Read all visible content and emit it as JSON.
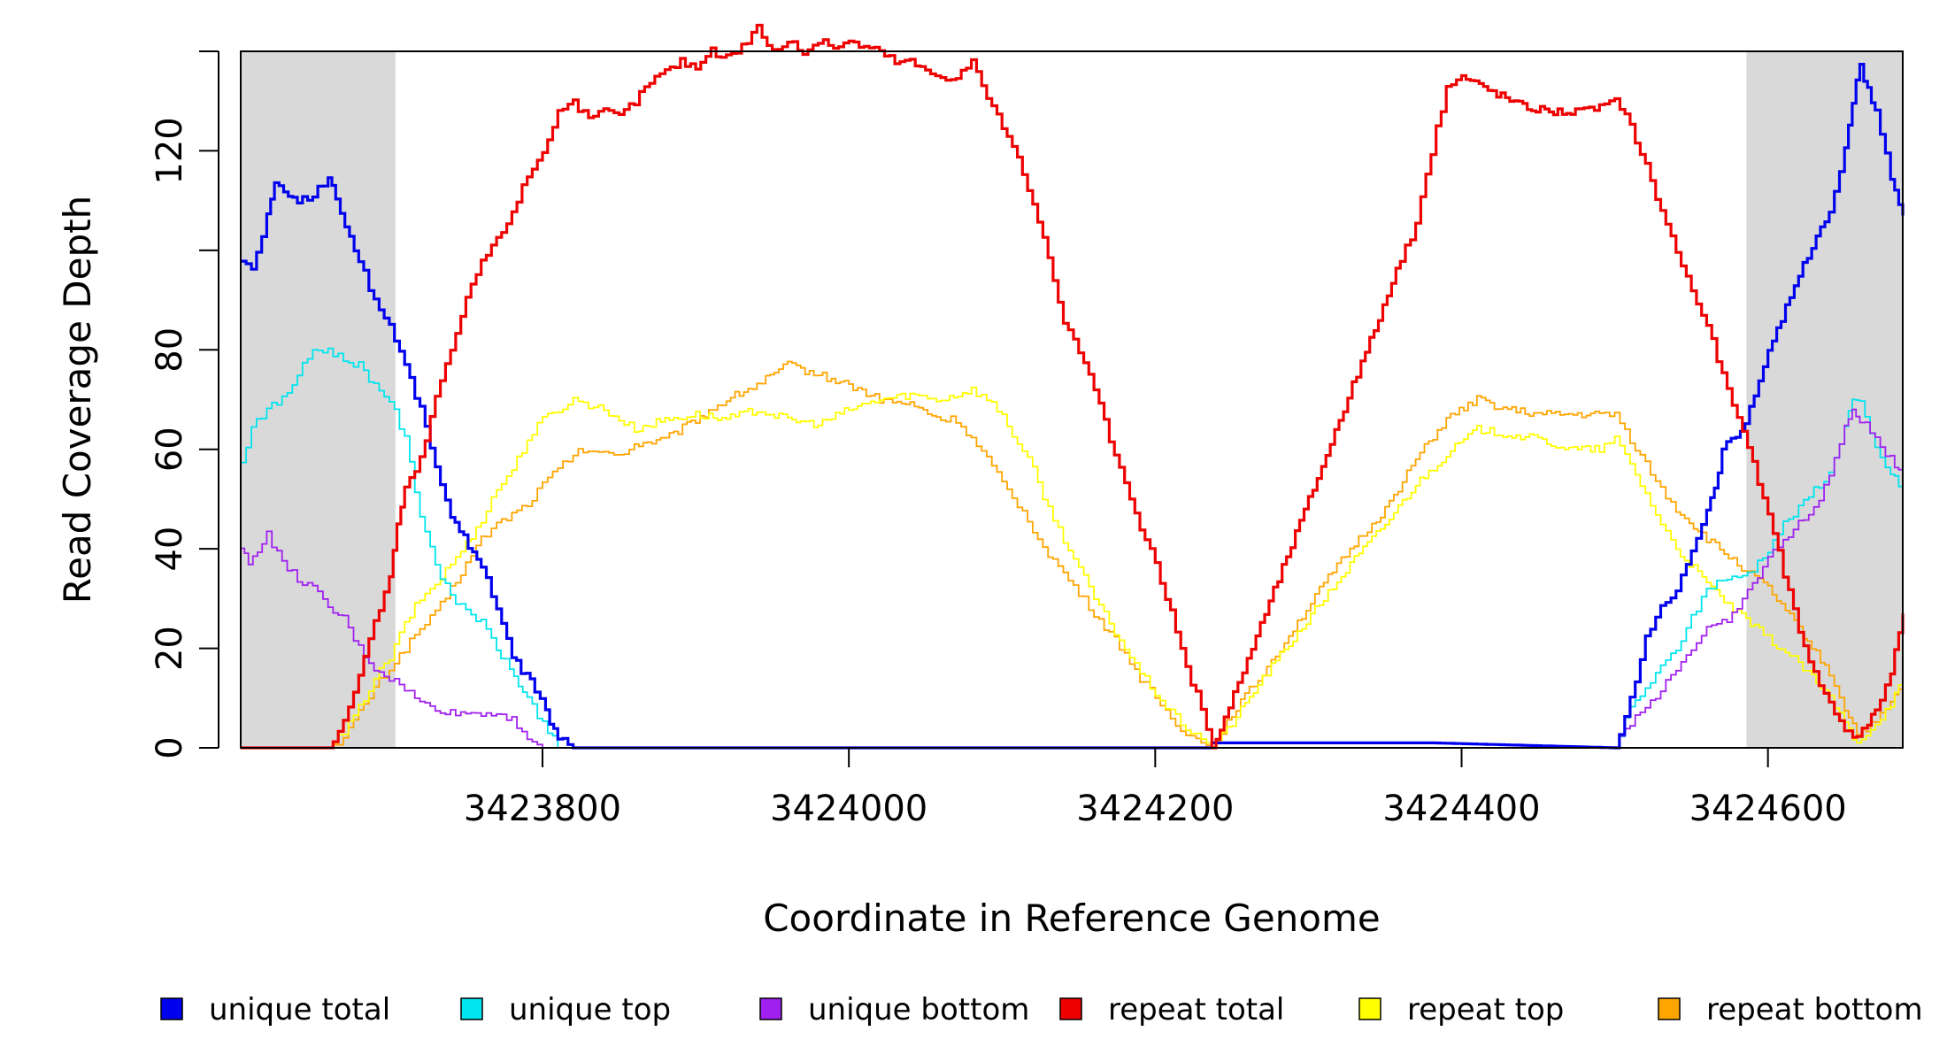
{
  "chart_data": {
    "type": "line",
    "title": "",
    "xlabel": "Coordinate in Reference Genome",
    "ylabel": "Read Coverage Depth",
    "xlim": [
      3423603,
      3424688
    ],
    "ylim": [
      0,
      140
    ],
    "x_ticks": [
      3423800,
      3424000,
      3424200,
      3424400,
      3424600
    ],
    "x_tick_labels": [
      "3423800",
      "3424000",
      "3424200",
      "3424400",
      "3424600"
    ],
    "y_ticks": [
      0,
      20,
      40,
      60,
      80,
      100,
      120,
      140
    ],
    "y_tick_labels": [
      "0",
      "20",
      "40",
      "60",
      "80",
      "",
      "120",
      ""
    ],
    "grid": false,
    "legend_position": "bottom",
    "shaded_regions": [
      {
        "from": 3423603,
        "to": 3423704,
        "color": "#d9d9d9"
      },
      {
        "from": 3424586,
        "to": 3424688,
        "color": "#d9d9d9"
      }
    ],
    "series": [
      {
        "name": "unique total",
        "color": "#0000ee",
        "x": [
          3423603,
          3423610,
          3423620,
          3423625,
          3423640,
          3423650,
          3423660,
          3423665,
          3423680,
          3423690,
          3423700,
          3423710,
          3423720,
          3423730,
          3423740,
          3423760,
          3423770,
          3423780,
          3423795,
          3423802,
          3423810,
          3423820,
          3424200,
          3424236,
          3424237,
          3424380,
          3424500,
          3424503,
          3424510,
          3424520,
          3424530,
          3424540,
          3424550,
          3424560,
          3424565,
          3424570,
          3424585,
          3424600,
          3424620,
          3424640,
          3424650,
          3424655,
          3424660,
          3424665,
          3424670,
          3424680,
          3424688
        ],
        "y": [
          98,
          96,
          107,
          113,
          110,
          111,
          115,
          110,
          98,
          90,
          85,
          77,
          68,
          57,
          46,
          37,
          28,
          18,
          12,
          7,
          2,
          0,
          0,
          0,
          1,
          1,
          0,
          2,
          10,
          22,
          28,
          32,
          40,
          48,
          52,
          60,
          65,
          80,
          95,
          108,
          120,
          130,
          137,
          132,
          128,
          115,
          107
        ]
      },
      {
        "name": "unique top",
        "color": "#00e5ee",
        "x": [
          3423603,
          3423610,
          3423620,
          3423630,
          3423640,
          3423650,
          3423660,
          3423670,
          3423680,
          3423690,
          3423700,
          3423710,
          3423720,
          3423730,
          3423740,
          3423750,
          3423760,
          3423770,
          3423790,
          3423800,
          3423810,
          3424200,
          3424236,
          3424500,
          3424510,
          3424520,
          3424530,
          3424540,
          3424550,
          3424560,
          3424570,
          3424580,
          3424590,
          3424600,
          3424610,
          3424620,
          3424630,
          3424640,
          3424650,
          3424655,
          3424660,
          3424670,
          3424680,
          3424688
        ],
        "y": [
          57,
          65,
          68,
          70,
          75,
          80,
          80,
          78,
          77,
          73,
          70,
          62,
          47,
          37,
          30,
          28,
          25,
          20,
          10,
          5,
          0,
          0,
          0,
          0,
          8,
          12,
          16,
          20,
          26,
          32,
          34,
          34,
          36,
          40,
          45,
          48,
          52,
          55,
          65,
          70,
          69,
          60,
          55,
          52
        ]
      },
      {
        "name": "unique bottom",
        "color": "#a020f0",
        "x": [
          3423603,
          3423608,
          3423620,
          3423630,
          3423640,
          3423650,
          3423660,
          3423670,
          3423680,
          3423690,
          3423700,
          3423710,
          3423720,
          3423730,
          3423740,
          3423750,
          3423760,
          3423770,
          3423780,
          3423790,
          3423800,
          3423810,
          3424200,
          3424236,
          3424500,
          3424510,
          3424520,
          3424530,
          3424540,
          3424550,
          3424560,
          3424570,
          3424580,
          3424590,
          3424600,
          3424610,
          3424620,
          3424630,
          3424640,
          3424650,
          3424655,
          3424660,
          3424670,
          3424680,
          3424688
        ],
        "y": [
          40,
          37,
          43,
          37,
          34,
          32,
          28,
          26,
          20,
          16,
          14,
          12,
          9,
          8,
          7,
          7,
          7,
          7,
          6,
          2,
          0,
          0,
          0,
          0,
          0,
          5,
          8,
          12,
          16,
          20,
          24,
          25,
          28,
          33,
          38,
          42,
          45,
          48,
          55,
          64,
          68,
          66,
          62,
          58,
          55
        ]
      },
      {
        "name": "repeat total",
        "color": "#ee0000",
        "x": [
          3423603,
          3423660,
          3423670,
          3423680,
          3423690,
          3423700,
          3423705,
          3423710,
          3423720,
          3423730,
          3423740,
          3423750,
          3423760,
          3423770,
          3423780,
          3423790,
          3423800,
          3423810,
          3423820,
          3423830,
          3423840,
          3423850,
          3423860,
          3423870,
          3423880,
          3423890,
          3423900,
          3423910,
          3423920,
          3423930,
          3423940,
          3423950,
          3423960,
          3423970,
          3423980,
          3423990,
          3424000,
          3424010,
          3424020,
          3424030,
          3424040,
          3424050,
          3424060,
          3424070,
          3424080,
          3424090,
          3424100,
          3424110,
          3424120,
          3424130,
          3424140,
          3424150,
          3424160,
          3424170,
          3424180,
          3424190,
          3424200,
          3424210,
          3424220,
          3424230,
          3424237,
          3424245,
          3424260,
          3424280,
          3424300,
          3424320,
          3424340,
          3424360,
          3424370,
          3424380,
          3424390,
          3424400,
          3424420,
          3424440,
          3424460,
          3424480,
          3424490,
          3424500,
          3424510,
          3424520,
          3424530,
          3424540,
          3424550,
          3424560,
          3424570,
          3424580,
          3424590,
          3424600,
          3424610,
          3424620,
          3424630,
          3424640,
          3424650,
          3424658,
          3424665,
          3424670,
          3424680,
          3424688
        ],
        "y": [
          0,
          0,
          5,
          15,
          25,
          35,
          45,
          52,
          58,
          70,
          80,
          90,
          98,
          102,
          108,
          115,
          120,
          128,
          130,
          126,
          128,
          127,
          130,
          134,
          136,
          138,
          137,
          140,
          139,
          141,
          145,
          140,
          142,
          140,
          142,
          141,
          142,
          141,
          140,
          138,
          138,
          136,
          135,
          135,
          138,
          131,
          125,
          118,
          110,
          98,
          85,
          80,
          72,
          62,
          53,
          44,
          37,
          27,
          16,
          8,
          0,
          6,
          18,
          34,
          50,
          66,
          82,
          98,
          105,
          120,
          133,
          135,
          132,
          129,
          128,
          128,
          129,
          130,
          125,
          117,
          108,
          100,
          92,
          85,
          75,
          66,
          57,
          47,
          35,
          24,
          15,
          9,
          4,
          2,
          5,
          8,
          15,
          27
        ]
      },
      {
        "name": "repeat top",
        "color": "#ffff00",
        "x": [
          3423603,
          3423660,
          3423670,
          3423680,
          3423690,
          3423700,
          3423710,
          3423720,
          3423730,
          3423740,
          3423750,
          3423760,
          3423770,
          3423780,
          3423790,
          3423800,
          3423810,
          3423820,
          3423830,
          3423840,
          3423850,
          3423860,
          3423880,
          3423900,
          3423920,
          3423940,
          3423960,
          3423980,
          3424000,
          3424020,
          3424040,
          3424060,
          3424080,
          3424090,
          3424100,
          3424110,
          3424120,
          3424130,
          3424140,
          3424150,
          3424160,
          3424170,
          3424180,
          3424190,
          3424200,
          3424210,
          3424220,
          3424230,
          3424237,
          3424250,
          3424270,
          3424290,
          3424310,
          3424330,
          3424350,
          3424370,
          3424390,
          3424410,
          3424430,
          3424450,
          3424470,
          3424490,
          3424500,
          3424510,
          3424520,
          3424530,
          3424540,
          3424560,
          3424580,
          3424600,
          3424620,
          3424640,
          3424650,
          3424658,
          3424670,
          3424680,
          3424688
        ],
        "y": [
          0,
          0,
          3,
          8,
          14,
          18,
          25,
          30,
          33,
          37,
          41,
          46,
          52,
          56,
          62,
          66,
          68,
          70,
          69,
          68,
          66,
          64,
          66,
          67,
          66,
          68,
          66,
          65,
          68,
          70,
          71,
          70,
          72,
          70,
          67,
          61,
          56,
          48,
          42,
          36,
          30,
          25,
          20,
          15,
          11,
          7,
          4,
          2,
          0,
          5,
          14,
          22,
          30,
          38,
          45,
          53,
          59,
          64,
          63,
          62,
          60,
          60,
          62,
          57,
          51,
          45,
          40,
          33,
          27,
          22,
          17,
          10,
          5,
          1,
          5,
          9,
          14
        ]
      },
      {
        "name": "repeat bottom",
        "color": "#ffa500",
        "x": [
          3423603,
          3423660,
          3423670,
          3423680,
          3423690,
          3423700,
          3423710,
          3423720,
          3423730,
          3423740,
          3423750,
          3423760,
          3423770,
          3423780,
          3423790,
          3423800,
          3423810,
          3423820,
          3423830,
          3423840,
          3423850,
          3423860,
          3423880,
          3423900,
          3423920,
          3423940,
          3423960,
          3423980,
          3424000,
          3424020,
          3424040,
          3424060,
          3424070,
          3424080,
          3424090,
          3424100,
          3424110,
          3424120,
          3424130,
          3424140,
          3424150,
          3424160,
          3424170,
          3424180,
          3424190,
          3424200,
          3424210,
          3424220,
          3424230,
          3424237,
          3424250,
          3424270,
          3424290,
          3424310,
          3424330,
          3424350,
          3424370,
          3424390,
          3424410,
          3424430,
          3424450,
          3424470,
          3424490,
          3424500,
          3424510,
          3424520,
          3424530,
          3424540,
          3424560,
          3424580,
          3424600,
          3424620,
          3424640,
          3424650,
          3424658,
          3424670,
          3424680,
          3424688
        ],
        "y": [
          0,
          0,
          2,
          7,
          12,
          16,
          20,
          24,
          27,
          32,
          37,
          42,
          45,
          47,
          49,
          53,
          56,
          59,
          60,
          59,
          59,
          61,
          62,
          66,
          70,
          73,
          77,
          75,
          73,
          70,
          69,
          66,
          66,
          62,
          58,
          53,
          49,
          44,
          39,
          35,
          31,
          27,
          23,
          19,
          14,
          10,
          6,
          3,
          1,
          0,
          7,
          15,
          24,
          33,
          41,
          48,
          58,
          66,
          70,
          68,
          67,
          67,
          67,
          67,
          62,
          57,
          52,
          48,
          42,
          37,
          32,
          24,
          15,
          8,
          3,
          5,
          9,
          13
        ]
      }
    ],
    "legend": [
      {
        "label": "unique total",
        "color": "#0000ee"
      },
      {
        "label": "unique top",
        "color": "#00e5ee"
      },
      {
        "label": "unique bottom",
        "color": "#a020f0"
      },
      {
        "label": "repeat total",
        "color": "#ee0000"
      },
      {
        "label": "repeat top",
        "color": "#ffff00"
      },
      {
        "label": "repeat bottom",
        "color": "#ffa500"
      }
    ]
  }
}
